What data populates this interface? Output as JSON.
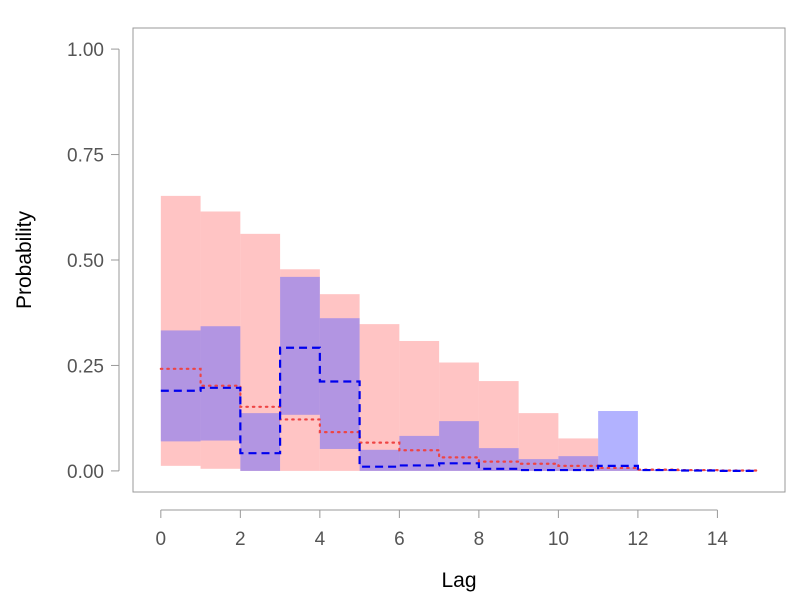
{
  "chart_data": {
    "type": "area",
    "xlabel": "Lag",
    "ylabel": "Probability",
    "xlim": [
      -0.7,
      15.7
    ],
    "ylim": [
      -0.05,
      1.05
    ],
    "grid": false,
    "x_ticks": [
      0,
      2,
      4,
      6,
      8,
      10,
      12,
      14
    ],
    "x_tick_labels": [
      "0",
      "2",
      "4",
      "6",
      "8",
      "10",
      "12",
      "14"
    ],
    "y_ticks": [
      0,
      0.25,
      0.5,
      0.75,
      1.0
    ],
    "y_tick_labels": [
      "0.00",
      "0.25",
      "0.50",
      "0.75",
      "1.00"
    ],
    "series": [
      {
        "style": "red-band",
        "color": "#ff9999",
        "opacity": 0.58,
        "lower": [
          0.012,
          0.005,
          0.0,
          0.0,
          0.0,
          0.0,
          0.0,
          0.0,
          0.0,
          0.0,
          0.0,
          0.0,
          0.0,
          0.0,
          0.0
        ],
        "upper": [
          0.652,
          0.615,
          0.562,
          0.478,
          0.419,
          0.348,
          0.308,
          0.257,
          0.213,
          0.137,
          0.077,
          0.008,
          0.003,
          0.002,
          0.001
        ]
      },
      {
        "style": "blue-band",
        "color": "#6666ff",
        "opacity": 0.5,
        "lower": [
          0.07,
          0.072,
          0.0,
          0.133,
          0.052,
          0.0,
          0.0,
          0.0,
          0.0,
          0.0,
          0.0,
          0.0,
          0.0,
          0.0,
          0.0
        ],
        "upper": [
          0.333,
          0.343,
          0.137,
          0.46,
          0.362,
          0.05,
          0.083,
          0.118,
          0.054,
          0.028,
          0.035,
          0.142,
          0.003,
          0.002,
          0.001
        ]
      },
      {
        "style": "red-dotted",
        "color": "#ee4444",
        "values": [
          0.242,
          0.202,
          0.152,
          0.122,
          0.092,
          0.067,
          0.049,
          0.032,
          0.022,
          0.017,
          0.012,
          0.007,
          0.003,
          0.002,
          0.001
        ]
      },
      {
        "style": "blue-dashed",
        "color": "#0000ee",
        "values": [
          0.19,
          0.197,
          0.042,
          0.292,
          0.212,
          0.01,
          0.013,
          0.018,
          0.005,
          0.002,
          0.002,
          0.012,
          0.002,
          0.001,
          0.0
        ]
      }
    ]
  }
}
